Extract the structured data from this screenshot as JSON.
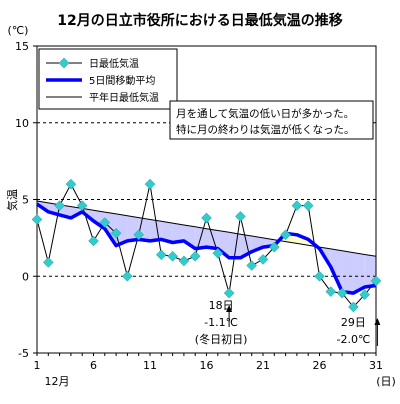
{
  "chart_data": {
    "type": "line",
    "title": "12月の日立市役所における日最低気温の推移",
    "ylabel": "気温",
    "yunit": "(℃)",
    "xunit": "(日)",
    "month_label": "12月",
    "ylim": [
      -5,
      15
    ],
    "xlim": [
      1,
      31
    ],
    "yticks": [
      -5,
      0,
      5,
      10,
      15
    ],
    "xticks": [
      1,
      6,
      11,
      16,
      21,
      26,
      31
    ],
    "grid": "horizontal-dashed",
    "legend_position": "top-left",
    "x": [
      1,
      2,
      3,
      4,
      5,
      6,
      7,
      8,
      9,
      10,
      11,
      12,
      13,
      14,
      15,
      16,
      17,
      18,
      19,
      20,
      21,
      22,
      23,
      24,
      25,
      26,
      27,
      28,
      29,
      30,
      31
    ],
    "series": [
      {
        "name": "日最低気温",
        "style": "line-with-markers",
        "color": "#000000",
        "marker_color": "#33cccc",
        "values": [
          3.7,
          0.9,
          4.6,
          6.0,
          4.6,
          2.3,
          3.5,
          2.8,
          0.0,
          2.7,
          6.0,
          1.4,
          1.3,
          1.0,
          1.3,
          3.8,
          1.5,
          -1.1,
          3.9,
          0.7,
          1.1,
          1.9,
          2.7,
          4.6,
          4.6,
          0.0,
          -1.0,
          -1.1,
          -2.0,
          -1.2,
          -0.3
        ]
      },
      {
        "name": "5日間移動平均",
        "style": "thick-line",
        "color": "#0000ff",
        "values": [
          4.7,
          4.2,
          4.0,
          3.8,
          4.2,
          3.6,
          3.1,
          2.0,
          2.3,
          2.4,
          2.3,
          2.4,
          2.2,
          2.3,
          1.8,
          1.9,
          1.8,
          1.2,
          1.2,
          1.6,
          1.9,
          2.0,
          2.8,
          2.7,
          2.4,
          1.8,
          0.6,
          -1.0,
          -1.1,
          -0.7,
          -0.6
        ]
      },
      {
        "name": "平年日最低気温",
        "style": "thin-line",
        "color": "#000000",
        "values": [
          4.9,
          4.78,
          4.66,
          4.54,
          4.42,
          4.3,
          4.18,
          4.06,
          3.94,
          3.82,
          3.7,
          3.58,
          3.46,
          3.34,
          3.22,
          3.1,
          2.98,
          2.86,
          2.74,
          2.62,
          2.5,
          2.38,
          2.26,
          2.14,
          2.02,
          1.9,
          1.78,
          1.66,
          1.54,
          1.42,
          1.3
        ]
      }
    ],
    "fill": {
      "below_normal_color": "#ccccff",
      "above_normal_color": "#ffffcc"
    },
    "annotations": {
      "note_lines": [
        "月を通して気温の低い日が多かった。",
        "特に月の終わりは気温が低くなった。"
      ],
      "callout_1": {
        "x": 18,
        "y": -1.1,
        "lines": [
          "18日",
          "-1.1℃",
          "(冬日初日)"
        ]
      },
      "callout_2": {
        "x": 29,
        "y": -2.0,
        "lines": [
          "29日",
          "-2.0℃"
        ]
      }
    }
  }
}
